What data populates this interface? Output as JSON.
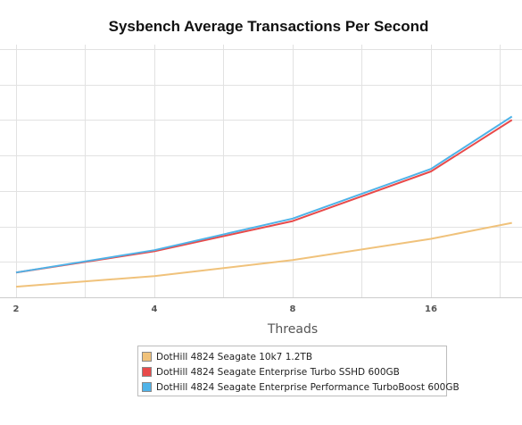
{
  "chart_data": {
    "type": "line",
    "title": "Sysbench Average Transactions Per Second",
    "xlabel": "Threads",
    "ylabel": "",
    "x_scale": "log2",
    "x": [
      2,
      4,
      8,
      16,
      24
    ],
    "x_ticks": [
      "2",
      "4",
      "8",
      "16"
    ],
    "ylim": [
      0,
      7
    ],
    "grid": true,
    "legend_position": "bottom",
    "series": [
      {
        "name": "DotHill 4824 Seagate 10k7 1.2TB",
        "color": "#f0c27b",
        "values": [
          0.3,
          0.6,
          1.05,
          1.65,
          2.1
        ]
      },
      {
        "name": "DotHill 4824 Seagate Enterprise Turbo SSHD 600GB",
        "color": "#e84a4a",
        "values": [
          0.7,
          1.3,
          2.15,
          3.55,
          5.0
        ]
      },
      {
        "name": "DotHill 4824 Seagate Enterprise Performance TurboBoost 600GB",
        "color": "#4fb3e8",
        "values": [
          0.7,
          1.33,
          2.22,
          3.62,
          5.1
        ]
      }
    ]
  }
}
